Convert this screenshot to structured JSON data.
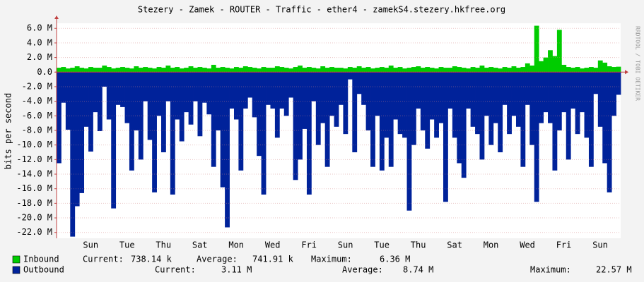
{
  "chart_data": {
    "type": "bar",
    "title": "Stezery - Zamek - ROUTER - Traffic - ether4 - zamekS4.stezery.hkfree.org",
    "y_label": "bits per second",
    "side_text": "RRDTOOL / TOBI OETIKER",
    "categories": [
      null,
      null,
      null,
      null,
      null,
      null,
      null,
      "Sun",
      null,
      null,
      null,
      null,
      null,
      null,
      null,
      "Tue",
      null,
      null,
      null,
      null,
      null,
      null,
      null,
      "Thu",
      null,
      null,
      null,
      null,
      null,
      null,
      null,
      "Sat",
      null,
      null,
      null,
      null,
      null,
      null,
      null,
      "Mon",
      null,
      null,
      null,
      null,
      null,
      null,
      null,
      "Wed",
      null,
      null,
      null,
      null,
      null,
      null,
      null,
      "Fri",
      null,
      null,
      null,
      null,
      null,
      null,
      null,
      "Sun",
      null,
      null,
      null,
      null,
      null,
      null,
      null,
      "Tue",
      null,
      null,
      null,
      null,
      null,
      null,
      null,
      "Thu",
      null,
      null,
      null,
      null,
      null,
      null,
      null,
      "Sat",
      null,
      null,
      null,
      null,
      null,
      null,
      null,
      "Mon",
      null,
      null,
      null,
      null,
      null,
      null,
      null,
      "Wed",
      null,
      null,
      null,
      null,
      null,
      null,
      null,
      "Fri",
      null,
      null,
      null,
      null,
      null,
      null,
      null,
      "Sun",
      null,
      null,
      null,
      null
    ],
    "ylim": [
      -22.8,
      6.7
    ],
    "yticks": [
      {
        "value": 6,
        "label": "6.0 M"
      },
      {
        "value": 4,
        "label": "4.0 M"
      },
      {
        "value": 2,
        "label": "2.0 M"
      },
      {
        "value": 0,
        "label": "0.0"
      },
      {
        "value": -2,
        "label": "-2.0 M"
      },
      {
        "value": -4,
        "label": "-4.0 M"
      },
      {
        "value": -6,
        "label": "-6.0 M"
      },
      {
        "value": -8,
        "label": "-8.0 M"
      },
      {
        "value": -10,
        "label": "-10.0 M"
      },
      {
        "value": -12,
        "label": "-12.0 M"
      },
      {
        "value": -14,
        "label": "-14.0 M"
      },
      {
        "value": -16,
        "label": "-16.0 M"
      },
      {
        "value": -18,
        "label": "-18.0 M"
      },
      {
        "value": -20,
        "label": "-20.0 M"
      },
      {
        "value": -22,
        "label": "-22.0 M"
      }
    ],
    "grid": true,
    "stat_labels": [
      "Current:",
      "Average:",
      "Maximum:"
    ],
    "series": [
      {
        "name": "Inbound",
        "color": "#00cc00",
        "stats": [
          "738.14 k",
          "741.91 k",
          "6.36 M"
        ],
        "values": [
          0.6,
          0.7,
          0.5,
          0.6,
          0.8,
          0.6,
          0.5,
          0.7,
          0.6,
          0.6,
          0.9,
          0.7,
          0.5,
          0.6,
          0.7,
          0.6,
          0.5,
          0.8,
          0.6,
          0.7,
          0.6,
          0.5,
          0.7,
          0.6,
          0.9,
          0.6,
          0.7,
          0.5,
          0.6,
          0.8,
          0.6,
          0.7,
          0.6,
          0.5,
          1.0,
          0.6,
          0.7,
          0.6,
          0.5,
          0.7,
          0.6,
          0.8,
          0.7,
          0.6,
          0.5,
          0.7,
          0.6,
          0.6,
          0.8,
          0.7,
          0.6,
          0.5,
          0.7,
          0.9,
          0.6,
          0.7,
          0.6,
          0.5,
          0.8,
          0.6,
          0.7,
          0.6,
          0.6,
          0.5,
          0.7,
          0.6,
          0.8,
          0.6,
          0.7,
          0.5,
          0.6,
          0.7,
          0.6,
          0.9,
          0.6,
          0.7,
          0.5,
          0.6,
          0.7,
          0.8,
          0.6,
          0.7,
          0.6,
          0.5,
          0.7,
          0.6,
          0.6,
          0.8,
          0.7,
          0.6,
          0.5,
          0.7,
          0.6,
          0.9,
          0.6,
          0.7,
          0.6,
          0.5,
          0.7,
          0.6,
          0.8,
          0.6,
          0.7,
          1.2,
          0.9,
          6.36,
          1.5,
          2.0,
          3.0,
          2.2,
          5.8,
          1.0,
          0.7,
          0.6,
          0.7,
          0.5,
          0.6,
          0.7,
          0.6,
          1.6,
          1.3,
          0.8,
          0.7,
          0.74
        ]
      },
      {
        "name": "Outbound",
        "color": "#00229a",
        "stats": [
          "3.11 M",
          "8.74 M",
          "22.57 M"
        ],
        "values": [
          -12.5,
          -4.2,
          -7.9,
          -22.57,
          -18.4,
          -16.6,
          -7.5,
          -10.9,
          -5.5,
          -8.1,
          -2.0,
          -6.5,
          -18.7,
          -4.5,
          -4.8,
          -7.0,
          -13.5,
          -8.0,
          -12.0,
          -4.0,
          -9.3,
          -16.5,
          -6.0,
          -11.0,
          -4.0,
          -16.8,
          -6.5,
          -9.5,
          -5.5,
          -7.2,
          -4.0,
          -8.8,
          -4.2,
          -5.8,
          -13.0,
          -8.0,
          -15.8,
          -21.3,
          -5.0,
          -6.5,
          -13.5,
          -5.0,
          -3.5,
          -6.2,
          -11.5,
          -16.8,
          -4.5,
          -5.0,
          -9.0,
          -5.0,
          -6.0,
          -3.5,
          -14.8,
          -12.0,
          -7.8,
          -16.8,
          -4.0,
          -10.0,
          -7.0,
          -13.0,
          -6.0,
          -7.5,
          -4.5,
          -8.5,
          -1.0,
          -11.0,
          -3.0,
          -4.5,
          -8.0,
          -13.0,
          -6.0,
          -13.5,
          -9.0,
          -13.0,
          -6.5,
          -8.5,
          -9.0,
          -19.0,
          -10.0,
          -5.0,
          -8.0,
          -10.5,
          -6.5,
          -9.0,
          -7.0,
          -17.8,
          -5.0,
          -9.0,
          -12.5,
          -14.5,
          -5.0,
          -7.5,
          -8.5,
          -12.0,
          -6.0,
          -10.0,
          -7.0,
          -11.0,
          -4.5,
          -8.5,
          -6.0,
          -7.5,
          -13.0,
          -4.5,
          -10.0,
          -17.8,
          -7.0,
          -5.5,
          -7.0,
          -13.5,
          -8.0,
          -5.5,
          -12.0,
          -5.0,
          -8.5,
          -5.5,
          -9.0,
          -13.0,
          -3.0,
          -7.5,
          -12.5,
          -16.5,
          -6.0,
          -3.11
        ]
      }
    ]
  }
}
